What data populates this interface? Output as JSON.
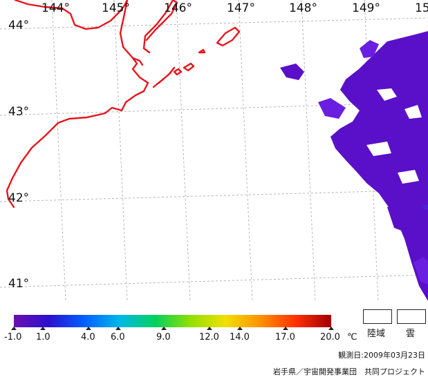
{
  "map": {
    "longitude_labels": [
      "144°",
      "145°",
      "146°",
      "147°",
      "148°",
      "149°",
      "15"
    ],
    "latitude_labels": [
      "44°",
      "43°",
      "42°",
      "41°"
    ],
    "coastline_color": "#e8141c",
    "grid_color": "#b4b4b4",
    "sst_colors": [
      "#5a10c8",
      "#6a1ee0",
      "#4822d8"
    ]
  },
  "colorbar": {
    "colors": [
      "#6a0fb0",
      "#2a10d0",
      "#0060ff",
      "#00b8e8",
      "#00d060",
      "#90e000",
      "#f0e000",
      "#ff9000",
      "#ff3000",
      "#a00000"
    ],
    "ticks": [
      "-1.0",
      "1.0",
      "4.0",
      "6.0",
      "9.0",
      "12.0",
      "14.0",
      "17.0",
      "20.0"
    ],
    "unit": "℃"
  },
  "legend": {
    "land_label": "陸域",
    "cloud_label": "雲"
  },
  "observation_date": "観測日:2009年03月23日",
  "credit": "岩手県／宇宙開発事業団　共同プロジェクト"
}
